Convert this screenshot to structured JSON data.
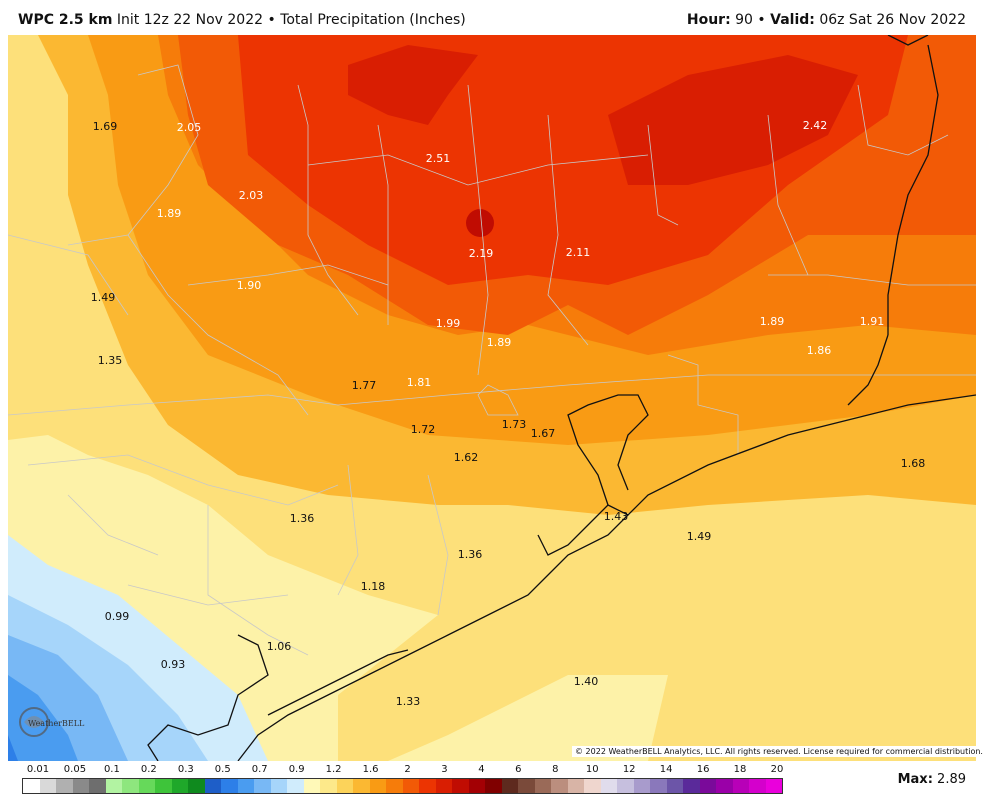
{
  "header": {
    "model": "WPC 2.5 km",
    "init": "Init 12z 22 Nov 2022",
    "separator": "•",
    "product": "Total Precipitation (Inches)",
    "hour_label": "Hour:",
    "hour_value": "90",
    "valid_label": "Valid:",
    "valid_value": "06z Sat 26 Nov 2022"
  },
  "map_values": [
    {
      "text": "1.69",
      "tone": "dark"
    },
    {
      "text": "2.05",
      "tone": "light"
    },
    {
      "text": "2.51",
      "tone": "light"
    },
    {
      "text": "2.42",
      "tone": "light"
    },
    {
      "text": "1.89",
      "tone": "light"
    },
    {
      "text": "2.03",
      "tone": "light"
    },
    {
      "text": "2.19",
      "tone": "light"
    },
    {
      "text": "2.11",
      "tone": "light"
    },
    {
      "text": "1.49",
      "tone": "dark"
    },
    {
      "text": "1.90",
      "tone": "light"
    },
    {
      "text": "1.99",
      "tone": "light"
    },
    {
      "text": "1.89",
      "tone": "light"
    },
    {
      "text": "1.89",
      "tone": "light"
    },
    {
      "text": "1.91",
      "tone": "light"
    },
    {
      "text": "1.86",
      "tone": "light"
    },
    {
      "text": "1.35",
      "tone": "dark"
    },
    {
      "text": "1.77",
      "tone": "dark"
    },
    {
      "text": "1.81",
      "tone": "light"
    },
    {
      "text": "1.73",
      "tone": "dark"
    },
    {
      "text": "1.67",
      "tone": "dark"
    },
    {
      "text": "1.72",
      "tone": "dark"
    },
    {
      "text": "1.62",
      "tone": "dark"
    },
    {
      "text": "1.68",
      "tone": "dark"
    },
    {
      "text": "1.36",
      "tone": "dark"
    },
    {
      "text": "1.43",
      "tone": "dark"
    },
    {
      "text": "1.49",
      "tone": "dark"
    },
    {
      "text": "1.36",
      "tone": "dark"
    },
    {
      "text": "1.18",
      "tone": "dark"
    },
    {
      "text": "0.99",
      "tone": "dark"
    },
    {
      "text": "1.06",
      "tone": "dark"
    },
    {
      "text": "0.93",
      "tone": "dark"
    },
    {
      "text": "1.40",
      "tone": "dark"
    },
    {
      "text": "1.33",
      "tone": "dark"
    }
  ],
  "logo_text": "WeatherBELL",
  "copyright": "© 2022 WeatherBELL Analytics, LLC. All rights reserved. License required for commercial distribution.",
  "legend": {
    "ticks": [
      "0.01",
      "0.05",
      "0.1",
      "0.2",
      "0.3",
      "0.5",
      "0.7",
      "0.9",
      "1.2",
      "1.6",
      "2",
      "3",
      "4",
      "6",
      "8",
      "10",
      "12",
      "14",
      "16",
      "18",
      "20"
    ],
    "colors": [
      "#ffffff",
      "#d9d9d9",
      "#b0b0b0",
      "#8a8a8a",
      "#6e6e6e",
      "#b2f3a2",
      "#8ee67e",
      "#66d95a",
      "#3ec43a",
      "#1fa82a",
      "#0f8a1e",
      "#1e5ec8",
      "#2d7fe8",
      "#4a9cf0",
      "#78b8f5",
      "#a6d5fa",
      "#d0ecfc",
      "#fff9b8",
      "#fde98a",
      "#fcd35a",
      "#fbb832",
      "#f99b14",
      "#f67c0a",
      "#f25a06",
      "#ec3402",
      "#d91e02",
      "#c00c02",
      "#a30004",
      "#800000",
      "#5e2a1e",
      "#7a4a3a",
      "#9a6a58",
      "#bb8e7e",
      "#d8b4a6",
      "#efd6ce",
      "#e0dcec",
      "#c6bfde",
      "#a89bcc",
      "#8a78bb",
      "#6c55a8",
      "#5a2a9a",
      "#7a0a9a",
      "#9a00a8",
      "#b800b8",
      "#d400cc",
      "#ea00dc"
    ]
  },
  "max": {
    "label": "Max",
    "value": "2.89"
  }
}
